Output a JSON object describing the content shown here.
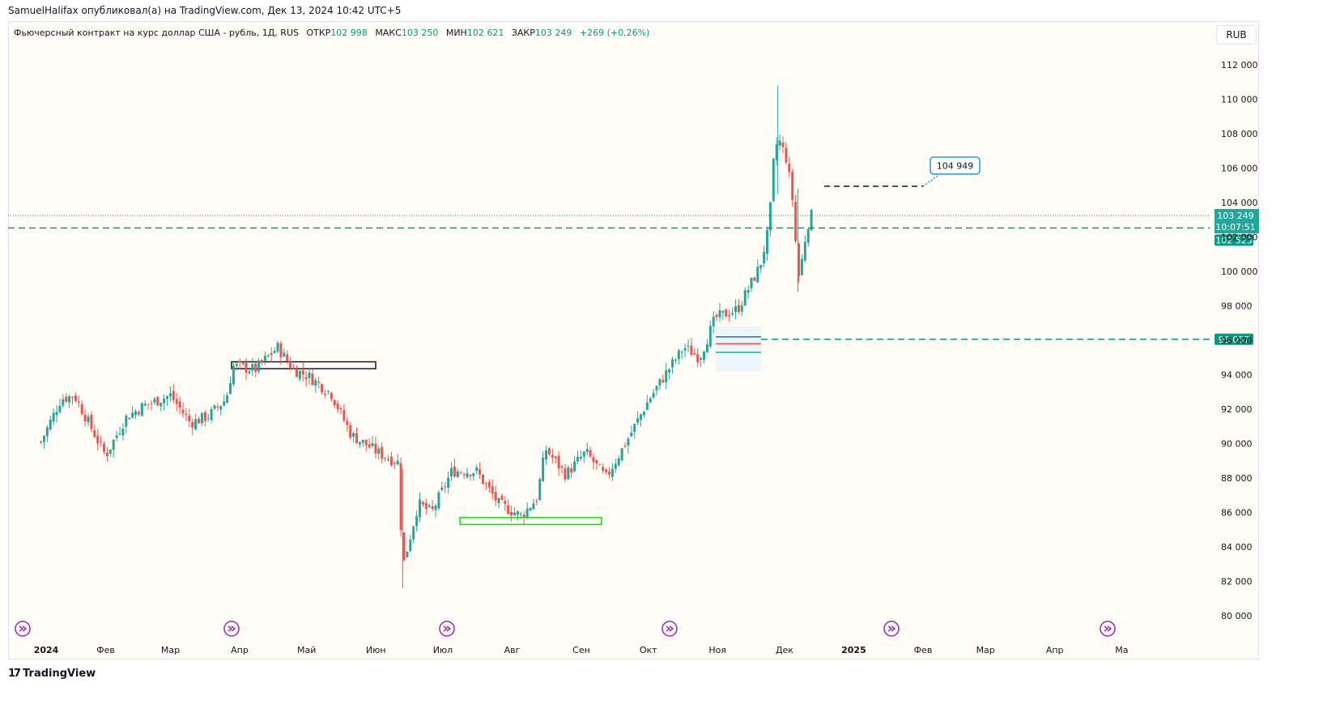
{
  "caption": "SamuelHalifax опубликовал(а) на TradingView.com, Дек 13, 2024 10:42 UTC+5",
  "legend": {
    "symbol": "Фьючерсный контракт на курс доллар США - рубль, 1Д, RUS",
    "open_label": "ОТКР",
    "open": "102 998",
    "high_label": "МАКС",
    "high": "103 250",
    "low_label": "МИН",
    "low": "102 621",
    "close_label": "ЗАКР",
    "close": "103 249",
    "change": "+269 (+0,26%)"
  },
  "currency": "RUB",
  "footer": "TradingView",
  "colors": {
    "up": "#26a69a",
    "down": "#ef5350",
    "teal": "#089981",
    "callout": "#2196f3",
    "green_box": "#00e600",
    "nav_icon": "#9c27b0"
  },
  "chart_data": {
    "type": "candlestick",
    "ylim": [
      79000,
      113000
    ],
    "y_ticks": [
      "80 000",
      "82 000",
      "84 000",
      "86 000",
      "88 000",
      "90 000",
      "92 000",
      "94 000",
      "96 000",
      "98 000",
      "100 000",
      "102 000",
      "104 000",
      "106 000",
      "108 000",
      "110 000",
      "112 000"
    ],
    "x_ticks": [
      "2024",
      "Фев",
      "Мар",
      "Апр",
      "Май",
      "Июн",
      "Июл",
      "Авг",
      "Сен",
      "Окт",
      "Ноя",
      "Дек",
      "2025",
      "Фев",
      "Мар",
      "Апр",
      "Ма"
    ],
    "bold_x_ticks": [
      "2024",
      "2025"
    ],
    "last_price_label": "103 249",
    "countdown_label": "10:07:51",
    "hline_label": "102 523",
    "level_label": "96 057",
    "callout_label": "104 949",
    "levels": {
      "last": 103249,
      "hline": 102523,
      "support": 96057,
      "resistance": 104949
    },
    "path_points": [
      {
        "d": "2024-01-03",
        "p": 90100
      },
      {
        "d": "2024-01-12",
        "p": 92600
      },
      {
        "d": "2024-01-18",
        "p": 92800
      },
      {
        "d": "2024-02-01",
        "p": 89300
      },
      {
        "d": "2024-02-10",
        "p": 91500
      },
      {
        "d": "2024-02-18",
        "p": 92200
      },
      {
        "d": "2024-03-01",
        "p": 92800
      },
      {
        "d": "2024-03-10",
        "p": 91200
      },
      {
        "d": "2024-03-18",
        "p": 91600
      },
      {
        "d": "2024-03-26",
        "p": 92600
      },
      {
        "d": "2024-03-29",
        "p": 94500
      },
      {
        "d": "2024-04-08",
        "p": 94300
      },
      {
        "d": "2024-04-18",
        "p": 95600
      },
      {
        "d": "2024-04-25",
        "p": 94300
      },
      {
        "d": "2024-05-02",
        "p": 93900
      },
      {
        "d": "2024-05-12",
        "p": 92900
      },
      {
        "d": "2024-05-21",
        "p": 90500
      },
      {
        "d": "2024-06-03",
        "p": 89400
      },
      {
        "d": "2024-06-11",
        "p": 88900
      },
      {
        "d": "2024-06-13",
        "p": 82800
      },
      {
        "d": "2024-06-20",
        "p": 86500
      },
      {
        "d": "2024-06-26",
        "p": 86000
      },
      {
        "d": "2024-07-05",
        "p": 88400
      },
      {
        "d": "2024-07-16",
        "p": 88400
      },
      {
        "d": "2024-07-26",
        "p": 86500
      },
      {
        "d": "2024-08-05",
        "p": 85800
      },
      {
        "d": "2024-08-12",
        "p": 86800
      },
      {
        "d": "2024-08-16",
        "p": 89700
      },
      {
        "d": "2024-08-25",
        "p": 88200
      },
      {
        "d": "2024-09-03",
        "p": 89500
      },
      {
        "d": "2024-09-12",
        "p": 88000
      },
      {
        "d": "2024-09-22",
        "p": 90300
      },
      {
        "d": "2024-10-01",
        "p": 92500
      },
      {
        "d": "2024-10-10",
        "p": 94300
      },
      {
        "d": "2024-10-17",
        "p": 95600
      },
      {
        "d": "2024-10-24",
        "p": 95000
      },
      {
        "d": "2024-10-31",
        "p": 97300
      },
      {
        "d": "2024-11-10",
        "p": 97800
      },
      {
        "d": "2024-11-20",
        "p": 100300
      },
      {
        "d": "2024-11-24",
        "p": 102500
      },
      {
        "d": "2024-11-26",
        "p": 106200
      },
      {
        "d": "2024-11-28",
        "p": 107800
      },
      {
        "d": "2024-12-02",
        "p": 106500
      },
      {
        "d": "2024-12-05",
        "p": 103800
      },
      {
        "d": "2024-12-07",
        "p": 99500
      },
      {
        "d": "2024-12-09",
        "p": 100800
      },
      {
        "d": "2024-12-11",
        "p": 102600
      },
      {
        "d": "2024-12-13",
        "p": 103249
      }
    ]
  }
}
